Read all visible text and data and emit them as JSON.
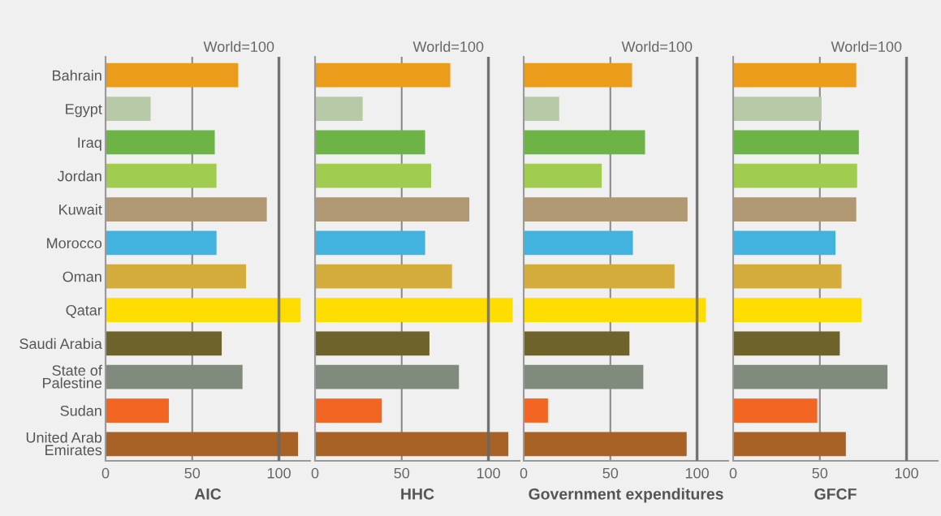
{
  "chart_data": [
    {
      "type": "bar",
      "orientation": "horizontal",
      "xlabel": "AIC",
      "categories": [
        "Bahrain",
        "Egypt",
        "Iraq",
        "Jordan",
        "Kuwait",
        "Morocco",
        "Oman",
        "Qatar",
        "Saudi Arabia",
        "State of\nPalestine",
        "Sudan",
        "United Arab\nEmirates"
      ],
      "values": [
        76.5,
        26,
        63,
        64,
        93,
        64,
        81,
        112.5,
        67,
        79,
        36.5,
        111
      ],
      "colors": [
        "#eb9c1a",
        "#b8c9a8",
        "#6db346",
        "#a0cc50",
        "#b09873",
        "#41b3de",
        "#d4ac3c",
        "#ffdd00",
        "#6e632b",
        "#808a7d",
        "#f26522",
        "#a86226"
      ],
      "xlim": [
        0,
        118
      ],
      "xticks": [
        0,
        50,
        100
      ],
      "grid": "x",
      "ref_lines": [
        {
          "axis": "x",
          "value": 100,
          "label": "World=100",
          "color": "#666666"
        }
      ]
    },
    {
      "type": "bar",
      "orientation": "horizontal",
      "xlabel": "HHC",
      "categories": [
        null,
        null,
        null,
        null,
        null,
        null,
        null,
        null,
        null,
        null,
        null,
        null
      ],
      "values": [
        78,
        27.5,
        63.5,
        67,
        89,
        63.5,
        79,
        114,
        66,
        83,
        38.5,
        111.5
      ],
      "colors": [
        "#eb9c1a",
        "#b8c9a8",
        "#6db346",
        "#a0cc50",
        "#b09873",
        "#41b3de",
        "#d4ac3c",
        "#ffdd00",
        "#6e632b",
        "#808a7d",
        "#f26522",
        "#a86226"
      ],
      "xlim": [
        0,
        118
      ],
      "xticks": [
        0,
        50,
        100
      ],
      "grid": "x",
      "ref_lines": [
        {
          "axis": "x",
          "value": 100,
          "label": "World=100",
          "color": "#666666"
        }
      ]
    },
    {
      "type": "bar",
      "orientation": "horizontal",
      "xlabel": "Government expenditures",
      "categories": [
        null,
        null,
        null,
        null,
        null,
        null,
        null,
        null,
        null,
        null,
        null,
        null
      ],
      "values": [
        62.5,
        20.5,
        70,
        45,
        94.5,
        63,
        87,
        105,
        61,
        69,
        14,
        94
      ],
      "colors": [
        "#eb9c1a",
        "#b8c9a8",
        "#6db346",
        "#a0cc50",
        "#b09873",
        "#41b3de",
        "#d4ac3c",
        "#ffdd00",
        "#6e632b",
        "#808a7d",
        "#f26522",
        "#a86226"
      ],
      "xlim": [
        0,
        118
      ],
      "xticks": [
        0,
        50,
        100
      ],
      "grid": "x",
      "ref_lines": [
        {
          "axis": "x",
          "value": 100,
          "label": "World=100",
          "color": "#666666"
        }
      ]
    },
    {
      "type": "bar",
      "orientation": "horizontal",
      "xlabel": "GFCF",
      "categories": [
        null,
        null,
        null,
        null,
        null,
        null,
        null,
        null,
        null,
        null,
        null,
        null
      ],
      "values": [
        71,
        51,
        72.5,
        71.5,
        71,
        59,
        62.5,
        74,
        61.5,
        89,
        48.5,
        65
      ],
      "colors": [
        "#eb9c1a",
        "#b8c9a8",
        "#6db346",
        "#a0cc50",
        "#b09873",
        "#41b3de",
        "#d4ac3c",
        "#ffdd00",
        "#6e632b",
        "#808a7d",
        "#f26522",
        "#a86226"
      ],
      "xlim": [
        0,
        118
      ],
      "xticks": [
        0,
        50,
        100
      ],
      "grid": "x",
      "ref_lines": [
        {
          "axis": "x",
          "value": 100,
          "label": "World=100",
          "color": "#666666"
        }
      ]
    }
  ]
}
